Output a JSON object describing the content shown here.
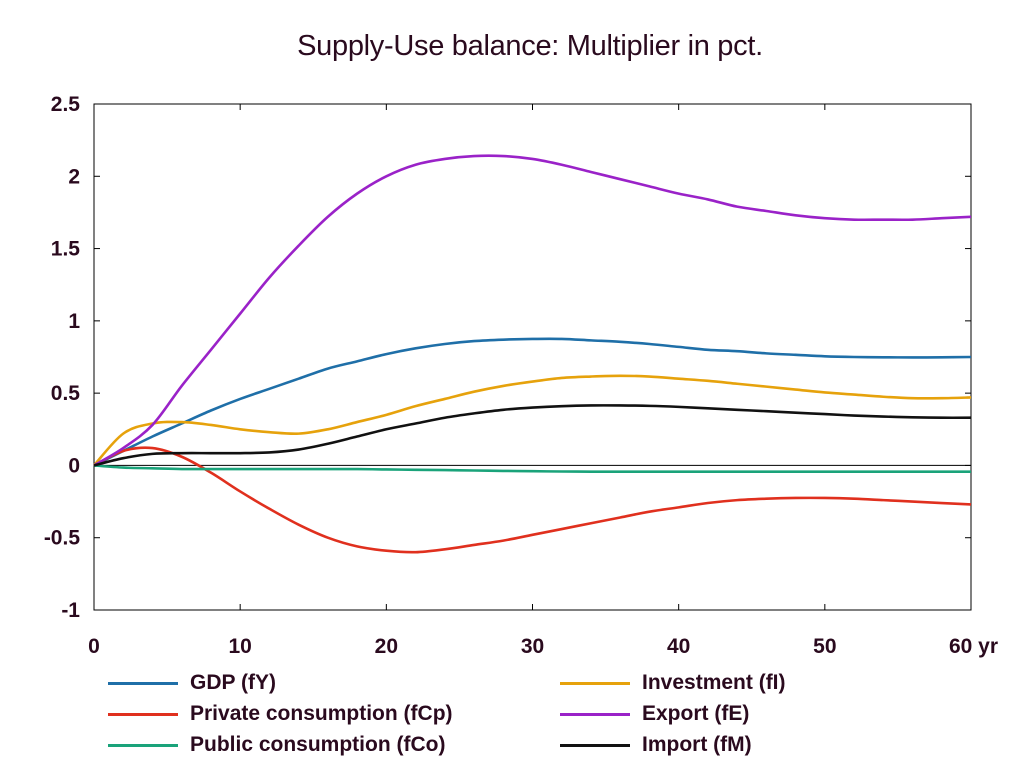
{
  "chart_data": {
    "type": "line",
    "title": "Supply-Use balance: Multiplier in pct.",
    "xlabel": "",
    "ylabel": "",
    "xlim": [
      0,
      60
    ],
    "ylim": [
      -1,
      2.5
    ],
    "xticks": [
      0,
      10,
      20,
      30,
      40,
      50,
      60
    ],
    "xtick_labels": [
      "0",
      "10",
      "20",
      "30",
      "40",
      "50",
      "60 yr"
    ],
    "yticks": [
      -1,
      -0.5,
      0,
      0.5,
      1,
      1.5,
      2,
      2.5
    ],
    "ytick_labels": [
      "-1",
      "-0.5",
      "0",
      "0.5",
      "1",
      "1.5",
      "2",
      "2.5"
    ],
    "grid": false,
    "legend_position": "bottom",
    "x": [
      0,
      2,
      4,
      6,
      8,
      10,
      12,
      14,
      16,
      18,
      20,
      22,
      24,
      26,
      28,
      30,
      32,
      34,
      36,
      38,
      40,
      42,
      44,
      46,
      48,
      50,
      52,
      54,
      56,
      58,
      60
    ],
    "series": [
      {
        "name": "GDP (fY)",
        "color": "#1f6fa8",
        "values": [
          0,
          0.1,
          0.2,
          0.29,
          0.38,
          0.46,
          0.53,
          0.6,
          0.67,
          0.72,
          0.77,
          0.81,
          0.84,
          0.86,
          0.87,
          0.875,
          0.875,
          0.865,
          0.855,
          0.84,
          0.82,
          0.8,
          0.79,
          0.775,
          0.765,
          0.755,
          0.75,
          0.748,
          0.747,
          0.748,
          0.75
        ]
      },
      {
        "name": "Private consumption (fCp)",
        "color": "#e0301e",
        "values": [
          0,
          0.1,
          0.12,
          0.06,
          -0.05,
          -0.18,
          -0.3,
          -0.41,
          -0.5,
          -0.56,
          -0.59,
          -0.6,
          -0.58,
          -0.55,
          -0.52,
          -0.48,
          -0.44,
          -0.4,
          -0.36,
          -0.32,
          -0.29,
          -0.26,
          -0.24,
          -0.23,
          -0.225,
          -0.225,
          -0.23,
          -0.24,
          -0.25,
          -0.26,
          -0.27
        ]
      },
      {
        "name": "Public consumption (fCo)",
        "color": "#1aa37a",
        "values": [
          0,
          -0.015,
          -0.02,
          -0.025,
          -0.025,
          -0.025,
          -0.025,
          -0.025,
          -0.025,
          -0.025,
          -0.028,
          -0.03,
          -0.032,
          -0.035,
          -0.038,
          -0.04,
          -0.042,
          -0.043,
          -0.043,
          -0.043,
          -0.043,
          -0.043,
          -0.043,
          -0.043,
          -0.043,
          -0.043,
          -0.043,
          -0.043,
          -0.043,
          -0.043,
          -0.043
        ]
      },
      {
        "name": "Investment (fI)",
        "color": "#e6a20c",
        "values": [
          0,
          0.22,
          0.29,
          0.3,
          0.28,
          0.25,
          0.23,
          0.22,
          0.25,
          0.3,
          0.35,
          0.41,
          0.46,
          0.51,
          0.55,
          0.58,
          0.605,
          0.615,
          0.62,
          0.615,
          0.6,
          0.585,
          0.565,
          0.545,
          0.525,
          0.505,
          0.49,
          0.475,
          0.465,
          0.465,
          0.47
        ]
      },
      {
        "name": "Export (fE)",
        "color": "#9a22c8",
        "values": [
          0,
          0.12,
          0.28,
          0.55,
          0.8,
          1.05,
          1.3,
          1.52,
          1.72,
          1.88,
          2.0,
          2.08,
          2.12,
          2.14,
          2.14,
          2.12,
          2.08,
          2.03,
          1.98,
          1.93,
          1.88,
          1.84,
          1.79,
          1.76,
          1.73,
          1.71,
          1.7,
          1.7,
          1.7,
          1.71,
          1.72
        ]
      },
      {
        "name": "Import (fM)",
        "color": "#111111",
        "values": [
          0,
          0.05,
          0.08,
          0.085,
          0.085,
          0.085,
          0.09,
          0.11,
          0.15,
          0.2,
          0.25,
          0.29,
          0.33,
          0.36,
          0.385,
          0.4,
          0.41,
          0.415,
          0.415,
          0.412,
          0.405,
          0.395,
          0.385,
          0.375,
          0.365,
          0.355,
          0.345,
          0.338,
          0.333,
          0.33,
          0.33
        ]
      }
    ]
  }
}
